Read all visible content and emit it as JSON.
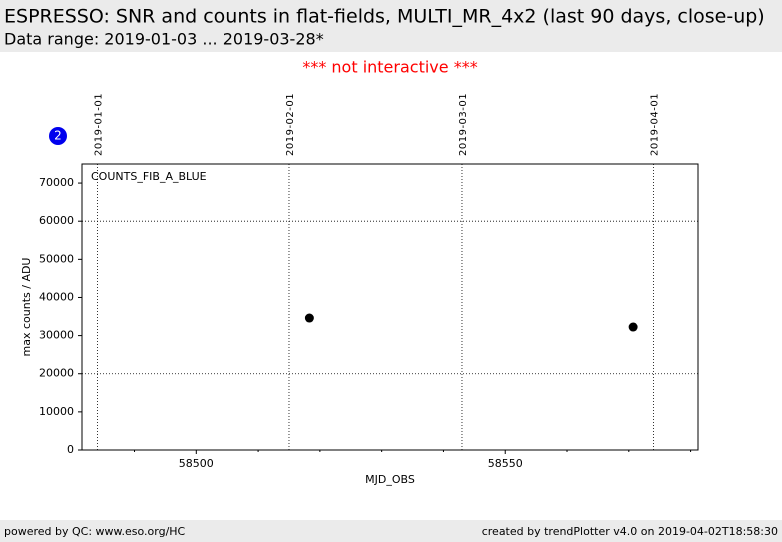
{
  "header": {
    "title": "ESPRESSO: SNR and counts in flat-fields, MULTI_MR_4x2 (last 90 days, close-up)",
    "subtitle": "Data range: 2019-01-03 ... 2019-03-28*"
  },
  "notice": "*** not interactive ***",
  "badge": "2",
  "footer": {
    "left": "powered by QC: www.eso.org/HC",
    "right": "created by trendPlotter v4.0 on 2019-04-02T18:58:30"
  },
  "chart_data": {
    "type": "scatter",
    "xlabel": "MJD_OBS",
    "ylabel": "max counts / ADU",
    "x": [
      58518.3,
      58570.7
    ],
    "series": [
      {
        "name": "COUNTS_FIB_A_BLUE",
        "color": "#000000",
        "values": [
          34600,
          32250
        ]
      }
    ],
    "xlim": [
      58481.5,
      58581.2
    ],
    "ylim": [
      0,
      75000
    ],
    "xticks": [
      58500,
      58550
    ],
    "xminorticks": [
      58490,
      58510,
      58520,
      58530,
      58540,
      58560,
      58570,
      58580
    ],
    "yticks": [
      0,
      10000,
      20000,
      30000,
      40000,
      50000,
      60000,
      70000
    ],
    "ygrid": [
      20000,
      60000
    ],
    "x2ticks": [
      {
        "value": 58484,
        "label": "2019-01-01"
      },
      {
        "value": 58515,
        "label": "2019-02-01"
      },
      {
        "value": 58543,
        "label": "2019-03-01"
      },
      {
        "value": 58574,
        "label": "2019-04-01"
      }
    ]
  }
}
